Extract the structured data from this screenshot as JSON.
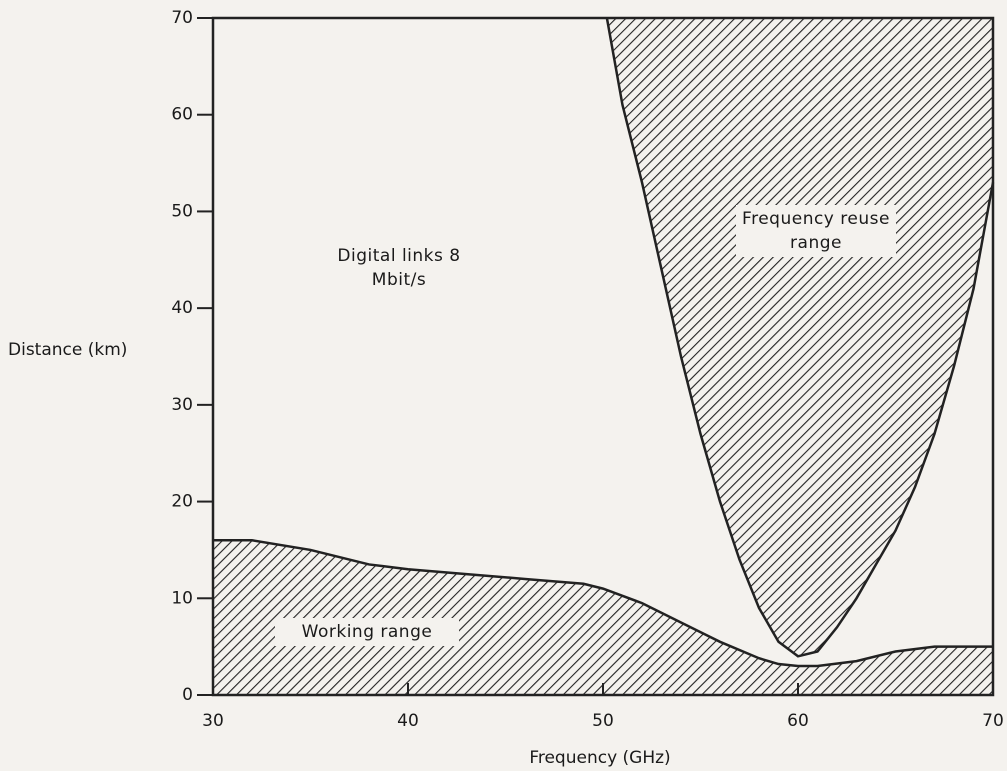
{
  "chart_data": {
    "type": "area",
    "x_label": "Frequency (GHz)",
    "y_label": "Distance (km)",
    "xlim": [
      30,
      70
    ],
    "ylim": [
      0,
      70
    ],
    "xticks": [
      30,
      40,
      50,
      60,
      70
    ],
    "yticks": [
      0,
      10,
      20,
      30,
      40,
      50,
      60,
      70
    ],
    "annotations": [
      "Digital links 8 Mbit/s"
    ],
    "color": "#222222",
    "hatch": true,
    "series": [
      {
        "name": "Working range",
        "fill": "below",
        "x": [
          30,
          32,
          35,
          38,
          40,
          43,
          46,
          49,
          50,
          52,
          54,
          56,
          58,
          59,
          60,
          61,
          63,
          65,
          67,
          70
        ],
        "values": [
          16,
          16,
          15,
          13.5,
          13,
          12.5,
          12,
          11.5,
          11,
          9.5,
          7.5,
          5.5,
          3.8,
          3.2,
          3,
          3,
          3.5,
          4.5,
          5,
          5
        ]
      },
      {
        "name": "Frequency reuse range",
        "fill": "above",
        "x": [
          50.2,
          51,
          52,
          53,
          54,
          55,
          56,
          57,
          58,
          59,
          60,
          61,
          62,
          63,
          64,
          65,
          66,
          67,
          68,
          69,
          70
        ],
        "values": [
          70,
          61,
          53,
          44,
          35,
          27,
          20,
          14,
          9,
          5.5,
          4,
          4.5,
          7,
          10,
          13.5,
          17,
          21.5,
          27,
          34,
          42,
          53
        ]
      }
    ]
  }
}
